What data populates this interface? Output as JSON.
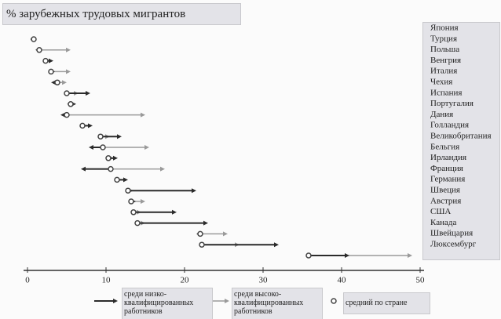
{
  "chart_data": {
    "type": "arrow-dot",
    "title": "% зарубежных трудовых мигрантов",
    "categories": [
      "Япония",
      "Турция",
      "Польша",
      "Венгрия",
      "Италия",
      "Чехия",
      "Испания",
      "Португалия",
      "Дания",
      "Голландия",
      "Великобритания",
      "Бельгия",
      "Ирландия",
      "Франция",
      "Германия",
      "Швеция",
      "Австрия",
      "США",
      "Канада",
      "Швейцария",
      "Люксембург"
    ],
    "series": [
      {
        "name": "среди низко-квалифицированных работников",
        "color": "#2b2b2b",
        "values": [
          0.8,
          1.0,
          3.3,
          3.5,
          3.0,
          8.0,
          6.2,
          4.2,
          8.3,
          12.0,
          7.8,
          11.5,
          6.8,
          12.8,
          21.5,
          13.8,
          19.0,
          23.0,
          21.5,
          32.0,
          41.0
        ]
      },
      {
        "name": "среди высоко-квалифицированных работников",
        "color": "#9a9a9a",
        "values": [
          0.8,
          5.5,
          2.8,
          5.5,
          5.0,
          6.5,
          5.0,
          15.0,
          7.5,
          10.5,
          15.5,
          11.0,
          17.5,
          12.0,
          13.5,
          15.0,
          14.5,
          15.0,
          25.5,
          27.0,
          49.0
        ]
      },
      {
        "name": "средний по стране",
        "color": "#444444",
        "values": [
          0.8,
          1.5,
          2.3,
          3.0,
          3.8,
          5.0,
          5.5,
          5.0,
          7.0,
          9.3,
          9.6,
          10.3,
          10.6,
          11.4,
          12.8,
          13.2,
          13.5,
          14.0,
          22.0,
          22.2,
          35.8
        ]
      }
    ],
    "xlim": [
      0,
      50
    ],
    "xticks": [
      0,
      10,
      20,
      30,
      40,
      50
    ]
  }
}
